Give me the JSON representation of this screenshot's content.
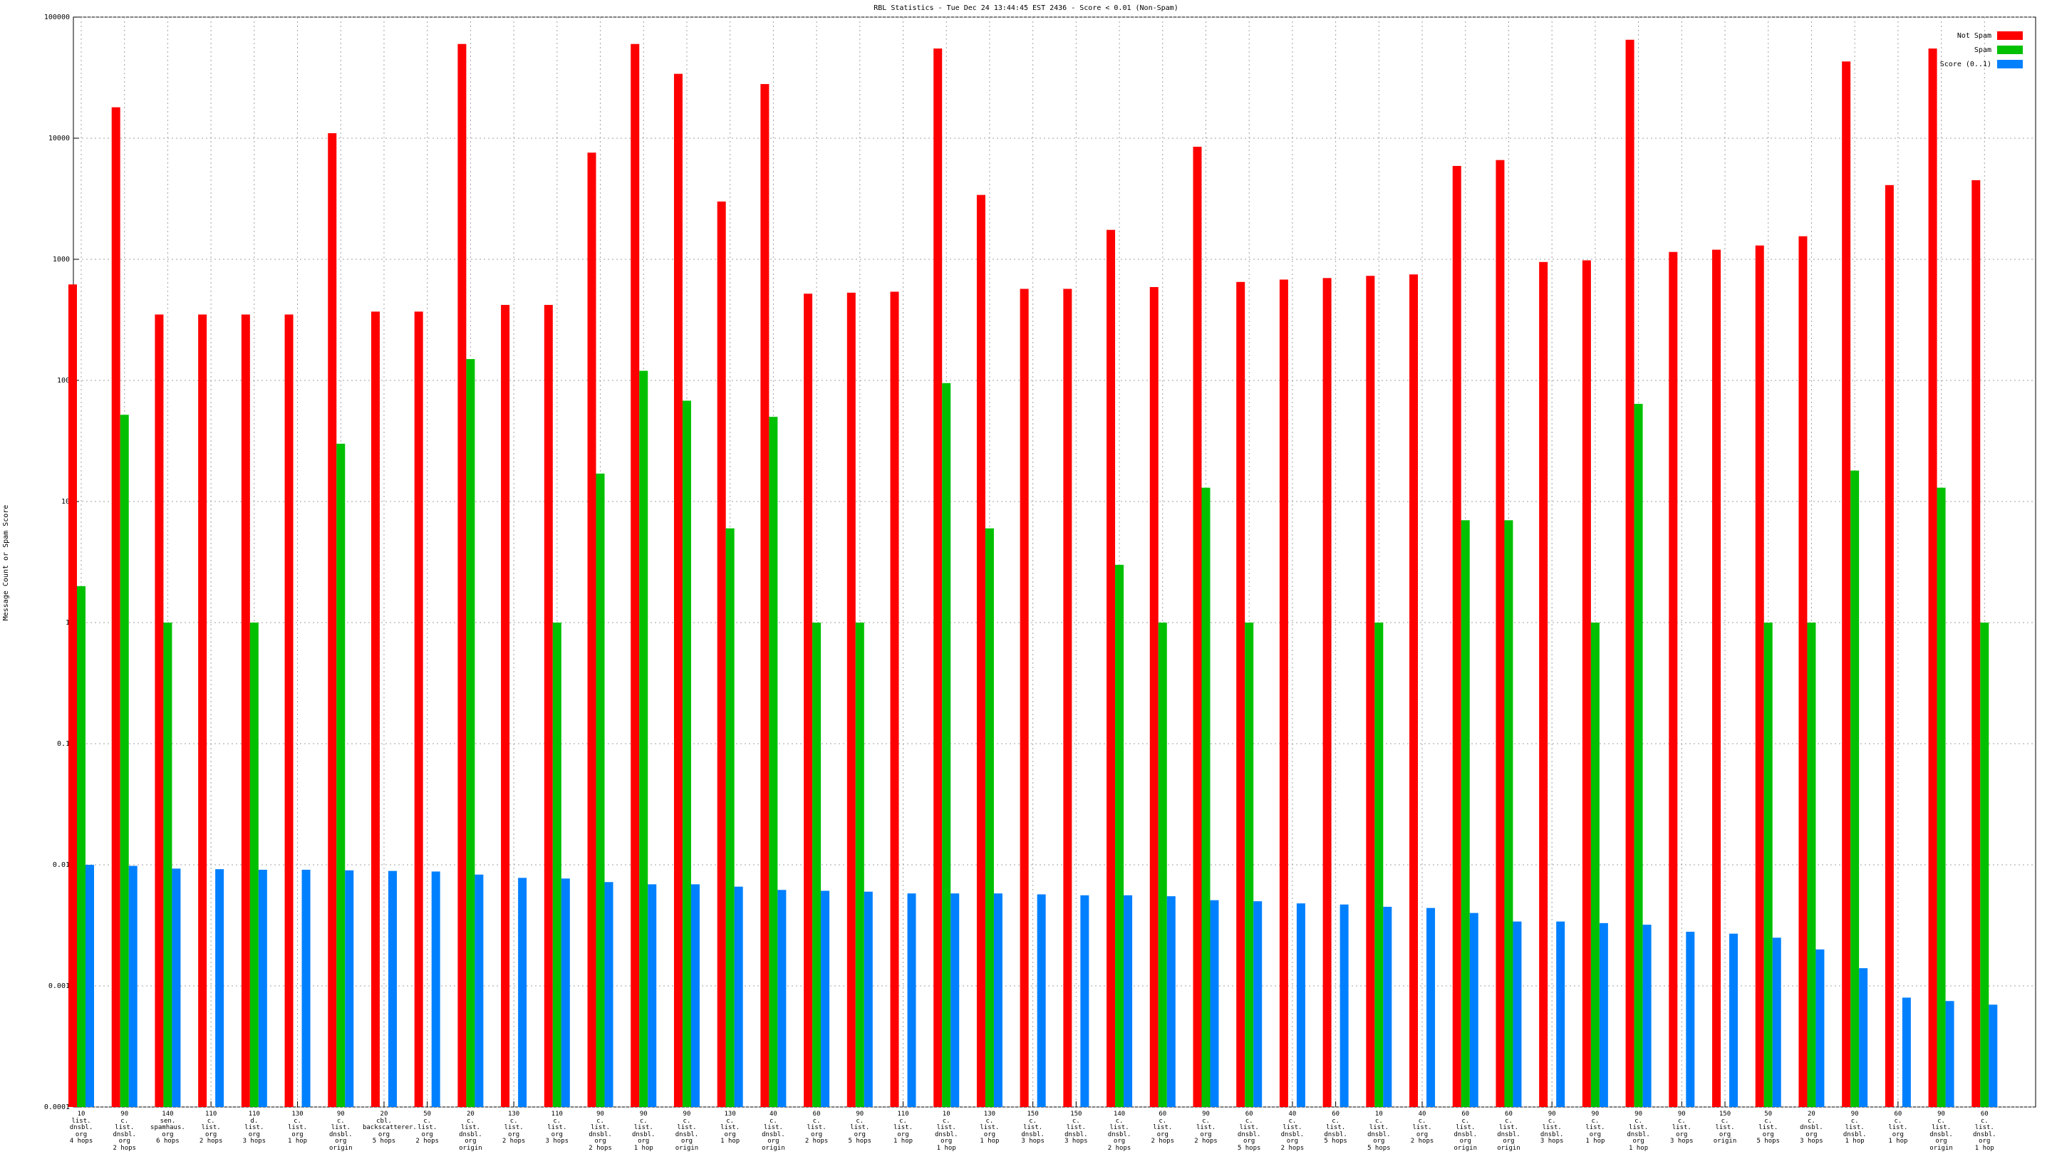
{
  "chart_data": {
    "type": "bar",
    "title": "RBL Statistics - Tue Dec 24 13:44:45 EST 2436 - Score < 0.01 (Non-Spam)",
    "y_label": "Message Count or Spam Score",
    "log_y": true,
    "grid": true,
    "legend": "top-right",
    "ylim": [
      0.0001,
      100000
    ],
    "yticks": [
      0.0001,
      0.001,
      0.01,
      0.1,
      1,
      10,
      100,
      1000,
      10000,
      100000
    ],
    "categories": [
      "10\nlist.\ndnsbl.\norg\n4 hops",
      "90\nc.\nlist.\ndnsbl.\norg\n2 hops",
      "140\nsen.\nspamhaus.\norg\n6 hops",
      "110\nc.\nlist.\norg\n2 hops",
      "110\nd.\nlist.\norg\n3 hops",
      "130\nc.\nlist.\norg\n1 hop",
      "90\nc.\nlist.\ndnsbl.\norg\norigin",
      "20\ncbl.\nbackscatterer.\norg\n5 hops",
      "50\nc.\nlist.\norg\n2 hops",
      "20\nc.\nlist.\ndnsbl.\norg\norigin",
      "130\nc.\nlist.\norg\n2 hops",
      "110\nc.\nlist.\norg\n3 hops",
      "90\nc.\nlist.\ndnsbl.\norg\n2 hops",
      "90\nc.\nlist.\ndnsbl.\norg\n1 hop",
      "90\nc.\nlist.\ndnsbl.\norg\norigin",
      "130\nc.\nlist.\norg\n1 hop",
      "40\nc.\nlist.\ndnsbl.\norg\norigin",
      "60\nc.\nlist.\norg\n2 hops",
      "90\nc.\nlist.\norg\n5 hops",
      "110\nc.\nlist.\norg\n1 hop",
      "10\nc.\nlist.\ndnsbl.\norg\n1 hop",
      "130\nc.\nlist.\norg\n1 hop",
      "150\nc.\nlist.\ndnsbl.\n3 hops",
      "150\nc.\nlist.\ndnsbl.\n3 hops",
      "140\nc.\nlist.\ndnsbl.\norg\n2 hops",
      "60\nc.\nlist.\norg\n2 hops",
      "90\nc.\nlist.\norg\n2 hops",
      "60\nc.\nlist.\ndnsbl.\norg\n5 hops",
      "40\nc.\nlist.\ndnsbl.\norg\n2 hops",
      "60\nc.\nlist.\ndnsbl.\n5 hops",
      "10\nc.\nlist.\ndnsbl.\norg\n5 hops",
      "40\nc.\nlist.\norg\n2 hops",
      "60\nc.\nlist.\ndnsbl.\norg\norigin",
      "60\nc.\nlist.\ndnsbl.\norg\norigin",
      "90\nc.\nlist.\ndnsbl.\n3 hops",
      "90\nc.\nlist.\norg\n1 hop",
      "90\nc.\nlist.\ndnsbl.\norg\n1 hop",
      "90\nc.\nlist.\norg\n3 hops",
      "150\nc.\nlist.\norg\norigin",
      "50\nc.\nlist.\norg\n5 hops",
      "20\nc.\ndnsbl.\norg\n3 hops",
      "90\nc.\nlist.\ndnsbl.\n1 hop",
      "60\nc.\nlist.\norg\n1 hop",
      "90\nc.\nlist.\ndnsbl.\norg\norigin",
      "60\nc.\nlist.\ndnsbl.\norg\n1 hop"
    ],
    "series": [
      {
        "name": "Not Spam",
        "color": "#ff0000",
        "values": [
          620,
          18000,
          350,
          350,
          350,
          350,
          11000,
          370,
          370,
          60000,
          420,
          420,
          7600,
          60000,
          34000,
          3000,
          28000,
          520,
          530,
          540,
          55000,
          3400,
          570,
          570,
          1750,
          590,
          8500,
          650,
          680,
          700,
          730,
          750,
          5900,
          6600,
          950,
          980,
          65000,
          1150,
          1200,
          1300,
          1550,
          43000,
          4100,
          55000,
          4500
        ]
      },
      {
        "name": "Spam",
        "color": "#00c000",
        "values": [
          2,
          52,
          1,
          null,
          1,
          null,
          30,
          null,
          null,
          150,
          null,
          1,
          17,
          120,
          68,
          6,
          50,
          1,
          1,
          null,
          95,
          6,
          null,
          null,
          3,
          1,
          13,
          1,
          null,
          null,
          1,
          null,
          7,
          7,
          null,
          1,
          64,
          null,
          null,
          1,
          1,
          18,
          null,
          13,
          1
        ]
      },
      {
        "name": "Score (0..1)",
        "color": "#0080ff",
        "values": [
          0.01,
          0.0098,
          0.0093,
          0.0092,
          0.0091,
          0.0091,
          0.009,
          0.0089,
          0.0088,
          0.0083,
          0.0078,
          0.0077,
          0.0072,
          0.0069,
          0.0069,
          0.0066,
          0.0062,
          0.0061,
          0.006,
          0.0058,
          0.0058,
          0.0058,
          0.0057,
          0.0056,
          0.0056,
          0.0055,
          0.0051,
          0.005,
          0.0048,
          0.0047,
          0.0045,
          0.0044,
          0.004,
          0.0034,
          0.0034,
          0.0033,
          0.0032,
          0.0028,
          0.0027,
          0.0025,
          0.002,
          0.0014,
          0.0008,
          0.00075,
          0.0007
        ]
      }
    ]
  }
}
